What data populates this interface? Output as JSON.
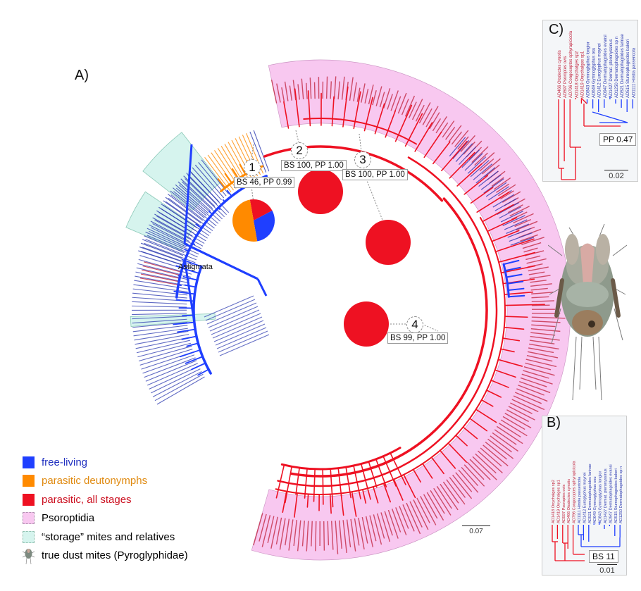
{
  "panels": {
    "a": "A)",
    "b": "B)",
    "c": "C)"
  },
  "colors": {
    "free_living": "#1f3fff",
    "parasitic_deutonymphs": "#ff8a00",
    "parasitic_all_stages": "#ee1122",
    "psoroptidia": "#f8c8f0",
    "storage_mites": "#d6f4ee",
    "leaf_red": "#c0203a",
    "leaf_blue": "#2a38b0"
  },
  "legend": [
    {
      "label": "free-living",
      "swatch": "free_living",
      "text_color": "#2030c0"
    },
    {
      "label": "parasitic deutonymphs",
      "swatch": "parasitic_deutonymphs",
      "text_color": "#e08a10"
    },
    {
      "label": "parasitic, all stages",
      "swatch": "parasitic_all_stages",
      "text_color": "#cc1020"
    },
    {
      "label": "Psoroptidia",
      "swatch": "psoroptidia",
      "text_color": "#111111"
    },
    {
      "label": "“storage” mites and relatives",
      "swatch": "storage_mites",
      "text_color": "#111111"
    },
    {
      "label": "true dust mites (Pyroglyphidae)",
      "swatch": "mite-image",
      "text_color": "#111111"
    }
  ],
  "tree_a": {
    "root_label": "Astigmata",
    "scale_label": "0.07",
    "nodes": [
      {
        "number": "1",
        "support": "BS 46, PP 0.99",
        "pie": [
          {
            "state": "parasitic_all_stages",
            "fraction": 0.2
          },
          {
            "state": "free_living",
            "fraction": 0.3
          },
          {
            "state": "parasitic_deutonymphs",
            "fraction": 0.5
          }
        ]
      },
      {
        "number": "2",
        "support": "BS 100, PP 1.00",
        "pie": [
          {
            "state": "parasitic_all_stages",
            "fraction": 1.0
          }
        ]
      },
      {
        "number": "3",
        "support": "BS 100, PP 1.00",
        "pie": [
          {
            "state": "parasitic_all_stages",
            "fraction": 1.0
          }
        ]
      },
      {
        "number": "4",
        "support": "BS 99, PP 1.00",
        "pie": [
          {
            "state": "parasitic_all_stages",
            "fraction": 1.0
          }
        ]
      }
    ]
  },
  "tree_b": {
    "support": "BS 11",
    "scale_label": "0.01",
    "leaves": [
      {
        "label": "AD1418 Onychalges sp2",
        "group": "red"
      },
      {
        "label": "AD1419 Onychalges sp1",
        "group": "red"
      },
      {
        "label": "AD597 Psoroptes ovis",
        "group": "red"
      },
      {
        "label": "AD466 Otodectes cynotis",
        "group": "red"
      },
      {
        "label": "AD796 Congocoptes sphyrapicicola",
        "group": "red"
      },
      {
        "label": "AD1111 Hirstia passericola",
        "group": "blue"
      },
      {
        "label": "AD1412 Euroglyphus maynei",
        "group": "blue"
      },
      {
        "label": "AD521 Dermatophagoides farinae",
        "group": "blue"
      },
      {
        "label": "AD649 Gymnoglyphus osu",
        "group": "blue"
      },
      {
        "label": "AD843 Gymnoglyphus longior",
        "group": "blue"
      },
      {
        "label": "AD1427 Dermat. pteronyssinus",
        "group": "blue"
      },
      {
        "label": "AD947 Dermatophagoides evansi",
        "group": "blue"
      },
      {
        "label": "AD515 Sturnophagoides bakeri",
        "group": "blue"
      },
      {
        "label": "AD1250 Dermatophagoides sp n",
        "group": "blue"
      }
    ]
  },
  "tree_c": {
    "support": "PP 0.47",
    "scale_label": "0.02",
    "leaves": [
      {
        "label": "AD466 Otodectes cynotis",
        "group": "red"
      },
      {
        "label": "AD597 Psoroptes ovis",
        "group": "red"
      },
      {
        "label": "AD796 Congocoptes sphyrapicicola",
        "group": "red"
      },
      {
        "label": "AD1418 Onychalges sp2",
        "group": "red"
      },
      {
        "label": "AD1419 Onychalges sp1",
        "group": "red"
      },
      {
        "label": "AD843 Gymnoglyphus longior",
        "group": "blue"
      },
      {
        "label": "AD649 Gymnoglyphus osu",
        "group": "blue"
      },
      {
        "label": "AD1412 Euroglyphus maynei",
        "group": "blue"
      },
      {
        "label": "AD947 Dermatophagoides evansi",
        "group": "blue"
      },
      {
        "label": "AD1427 Dermat. pteronyssinus",
        "group": "blue"
      },
      {
        "label": "AD1250 Dermatophagoides sp n",
        "group": "blue"
      },
      {
        "label": "AD521 Dermatophagoides farinae",
        "group": "blue"
      },
      {
        "label": "AD515 Sturnophagoides bakeri",
        "group": "blue"
      },
      {
        "label": "AD1111 Hirstia passericola",
        "group": "blue"
      }
    ]
  }
}
